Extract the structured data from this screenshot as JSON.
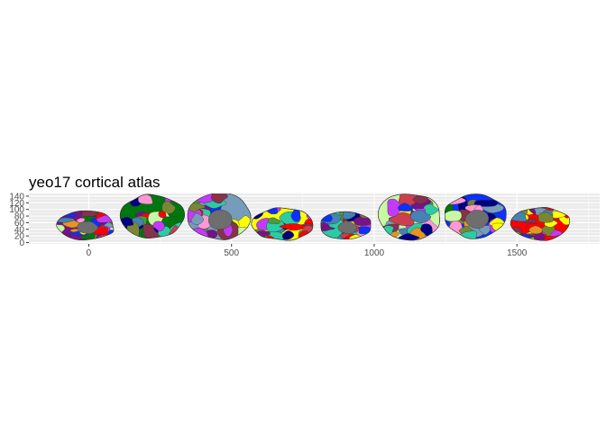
{
  "chart_data": {
    "type": "brain-atlas",
    "title": "yeo17 cortical atlas",
    "xlabel": "",
    "ylabel": "",
    "x_ticks": [
      0,
      500,
      1000,
      1500
    ],
    "y_ticks": [
      0,
      20,
      40,
      60,
      80,
      100,
      120,
      140
    ],
    "xlim": [
      -210,
      1790
    ],
    "ylim": [
      -4,
      148
    ],
    "grid": true,
    "legend": "none",
    "panel_background": "#ebebeb",
    "grid_color": "#ffffff",
    "regions_count": 17,
    "palette": [
      "#781286",
      "#ff0000",
      "#4682b4",
      "#2acca4",
      "#4a9b3c",
      "#00760e",
      "#c43afa",
      "#ff98d5",
      "#c8f8a4",
      "#7a8732",
      "#779cba",
      "#e69422",
      "#87324a",
      "#0c30ff",
      "#000082",
      "#ffff00",
      "#cd3e4e"
    ],
    "views": [
      {
        "hemisphere": "left",
        "view": "medial",
        "x_range": [
          -110,
          90
        ],
        "y_range": [
          8,
          95
        ]
      },
      {
        "hemisphere": "left",
        "view": "lateral",
        "x_range": [
          115,
          330
        ],
        "y_range": [
          15,
          145
        ]
      },
      {
        "hemisphere": "left",
        "view": "medial",
        "x_range": [
          345,
          565
        ],
        "y_range": [
          10,
          148
        ]
      },
      {
        "hemisphere": "left",
        "view": "lateral",
        "x_range": [
          570,
          790
        ],
        "y_range": [
          8,
          105
        ]
      },
      {
        "hemisphere": "right",
        "view": "medial",
        "x_range": [
          810,
          990
        ],
        "y_range": [
          8,
          95
        ]
      },
      {
        "hemisphere": "right",
        "view": "lateral",
        "x_range": [
          1015,
          1235
        ],
        "y_range": [
          10,
          148
        ]
      },
      {
        "hemisphere": "right",
        "view": "medial",
        "x_range": [
          1245,
          1465
        ],
        "y_range": [
          15,
          145
        ]
      },
      {
        "hemisphere": "right",
        "view": "lateral",
        "x_range": [
          1475,
          1685
        ],
        "y_range": [
          8,
          105
        ]
      }
    ]
  }
}
